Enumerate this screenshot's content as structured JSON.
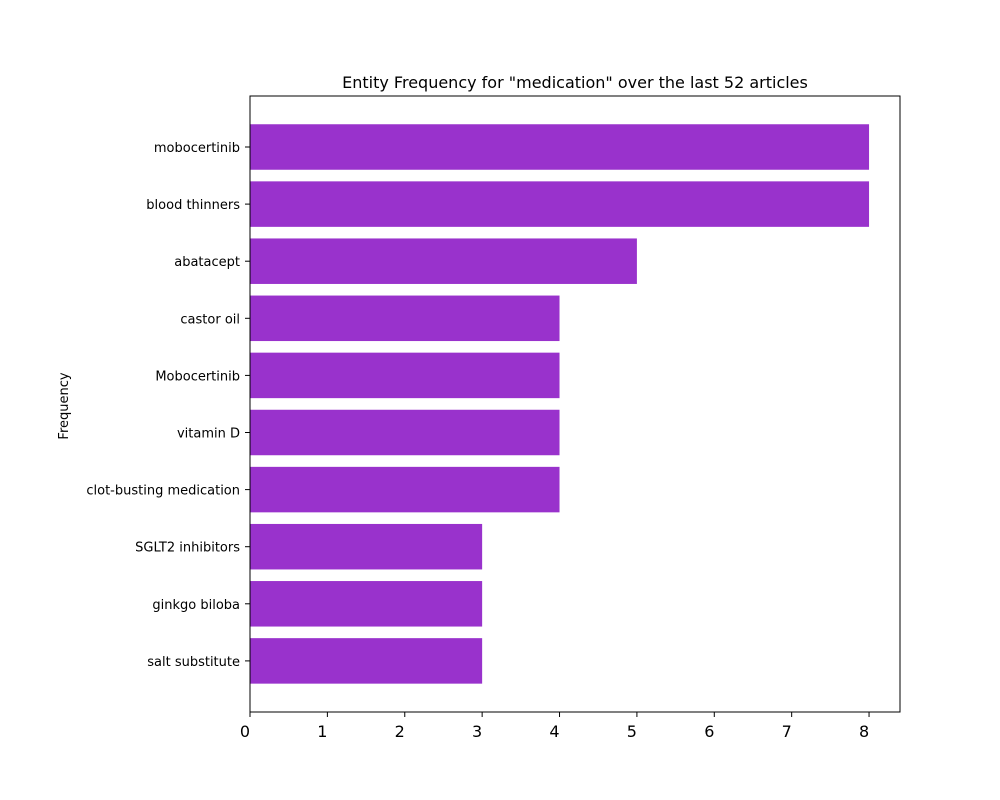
{
  "chart_data": {
    "type": "bar",
    "orientation": "horizontal",
    "title": "Entity Frequency for \"medication\" over the last 52 articles",
    "xlabel": "",
    "ylabel": "Frequency",
    "categories": [
      "mobocertinib",
      "blood thinners",
      "abatacept",
      "castor oil",
      "Mobocertinib",
      "vitamin D",
      "clot-busting medication",
      "SGLT2 inhibitors",
      "ginkgo biloba",
      "salt substitute"
    ],
    "values": [
      8,
      8,
      5,
      4,
      4,
      4,
      4,
      3,
      3,
      3
    ],
    "xlim": [
      0,
      8.4
    ],
    "xticks": [
      0,
      1,
      2,
      3,
      4,
      5,
      6,
      7,
      8
    ],
    "bar_color": "#9932cc",
    "grid": false,
    "legend": "none"
  }
}
